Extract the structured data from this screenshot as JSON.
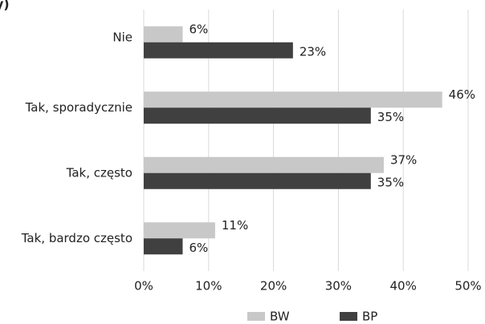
{
  "chart_data": {
    "type": "barh",
    "title": "y)",
    "categories": [
      "Nie",
      "Tak, sporadycznie",
      "Tak, często",
      "Tak, bardzo często"
    ],
    "series": [
      {
        "name": "BW",
        "color": "#c8c8c8",
        "values": [
          6,
          46,
          37,
          11
        ],
        "value_labels": [
          "6%",
          "46%",
          "37%",
          "11%"
        ]
      },
      {
        "name": "BP",
        "color": "#404040",
        "values": [
          23,
          35,
          35,
          6
        ],
        "value_labels": [
          "23%",
          "35%",
          "35%",
          "6%"
        ]
      }
    ],
    "xlim": [
      0,
      50
    ],
    "xticks": [
      {
        "value": 0,
        "label": "0%"
      },
      {
        "value": 10,
        "label": "10%"
      },
      {
        "value": 20,
        "label": "20%"
      },
      {
        "value": 30,
        "label": "30%"
      },
      {
        "value": 40,
        "label": "40%"
      },
      {
        "value": 50,
        "label": "50%"
      }
    ],
    "grid": true,
    "legend": "bottom"
  }
}
